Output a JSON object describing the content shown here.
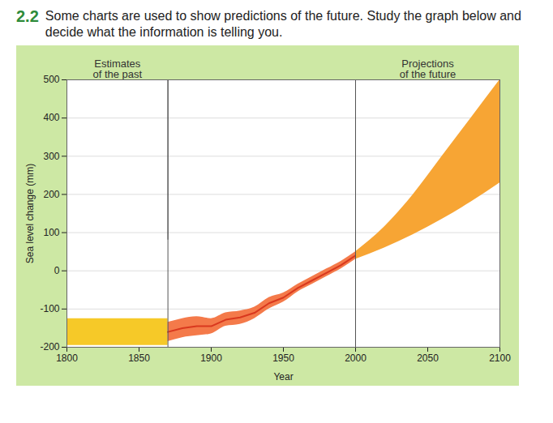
{
  "exercise": {
    "number": "2.2",
    "instruction": "Some charts are used to show predictions of the future. Study the graph below and decide what the information is telling you."
  },
  "chart_data": {
    "type": "band",
    "x_label": "Year",
    "y_label": "Sea level change (mm)",
    "xlim": [
      1800,
      2100
    ],
    "xticks": [
      1800,
      1850,
      1900,
      1950,
      2000,
      2050,
      2100
    ],
    "ylim": [
      -200,
      500
    ],
    "yticks": [
      -200,
      -100,
      0,
      100,
      200,
      300,
      400,
      500
    ],
    "grid": true,
    "periods": [
      {
        "label": "Estimates\nof the past",
        "start": 1800,
        "end": 1870
      },
      {
        "label": "Projections\nof the future",
        "start": 2000,
        "end": 2100
      }
    ],
    "series": [
      {
        "type": "area",
        "color": "#f6c928",
        "x": [
          1800,
          1870
        ],
        "lower": [
          -195,
          -195
        ],
        "upper": [
          -125,
          -125
        ]
      },
      {
        "type": "area",
        "color": "#f47a4a",
        "x": [
          1870,
          1880,
          1890,
          1900,
          1910,
          1920,
          1930,
          1940,
          1950,
          1960,
          1970,
          1980,
          1990,
          2000
        ],
        "lower": [
          -185,
          -175,
          -170,
          -165,
          -145,
          -140,
          -125,
          -100,
          -82,
          -55,
          -35,
          -15,
          5,
          30
        ],
        "upper": [
          -135,
          -125,
          -120,
          -125,
          -110,
          -105,
          -95,
          -70,
          -58,
          -35,
          -15,
          5,
          25,
          50
        ]
      },
      {
        "type": "line",
        "color": "#d9381e",
        "x": [
          1870,
          1880,
          1890,
          1900,
          1910,
          1920,
          1930,
          1940,
          1950,
          1960,
          1970,
          1980,
          1990,
          2000
        ],
        "values": [
          -160,
          -150,
          -145,
          -145,
          -128,
          -122,
          -110,
          -85,
          -70,
          -45,
          -25,
          -5,
          15,
          40
        ]
      },
      {
        "type": "area",
        "color": "#f7a534",
        "x": [
          2000,
          2020,
          2040,
          2060,
          2080,
          2100
        ],
        "lower": [
          30,
          60,
          95,
          135,
          180,
          230
        ],
        "upper": [
          50,
          115,
          200,
          300,
          400,
          500
        ]
      }
    ]
  }
}
